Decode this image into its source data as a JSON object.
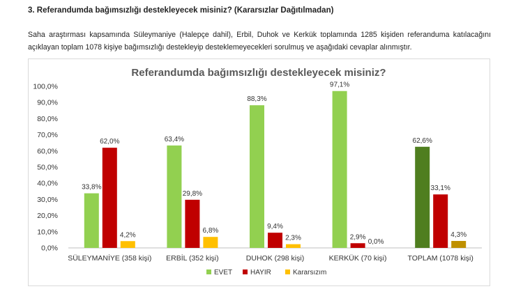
{
  "heading": "3. Referandumda bağımsızlığı destekleyecek misiniz? (Kararsızlar Dağıtılmadan)",
  "paragraph": "Saha araştırması kapsamında Süleymaniye (Halepçe dahil), Erbil, Duhok ve Kerkük toplamında 1285 kişiden referanduma katılacağını açıklayan toplam 1078 kişiye bağımsızlığı destekleyip desteklemeyecekleri sorulmuş ve aşağıdaki cevaplar alınmıştır.",
  "chart_data": {
    "type": "bar",
    "title": "Referandumda bağımsızlığı destekleyecek misiniz?",
    "categories": [
      "SÜLEYMANİYE (358 kişi)",
      "ERBİL (352 kişi)",
      "DUHOK (298 kişi)",
      "KERKÜK (70 kişi)",
      "TOPLAM (1078 kişi)"
    ],
    "series": [
      {
        "name": "EVET",
        "color": "#92d050",
        "values": [
          33.8,
          63.4,
          88.3,
          97.1,
          62.6
        ],
        "labels": [
          "33,8%",
          "63,4%",
          "88,3%",
          "97,1%",
          "62,6%"
        ]
      },
      {
        "name": "HAYIR",
        "color": "#c00000",
        "values": [
          62.0,
          29.8,
          9.4,
          2.9,
          33.1
        ],
        "labels": [
          "62,0%",
          "29,8%",
          "9,4%",
          "2,9%",
          "33,1%"
        ]
      },
      {
        "name": "Kararsızım",
        "color": "#ffc000",
        "values": [
          4.2,
          6.8,
          2.3,
          0.0,
          4.3
        ],
        "labels": [
          "4,2%",
          "6,8%",
          "2,3%",
          "0,0%",
          "4,3%"
        ]
      }
    ],
    "total_colors": [
      "#4f7e1f",
      "#c00000",
      "#bf9000"
    ],
    "ylim": [
      0,
      100
    ],
    "yticks": [
      "0,0%",
      "10,0%",
      "20,0%",
      "30,0%",
      "40,0%",
      "50,0%",
      "60,0%",
      "70,0%",
      "80,0%",
      "90,0%",
      "100,0%"
    ],
    "legend_position": "bottom",
    "grid": false
  }
}
